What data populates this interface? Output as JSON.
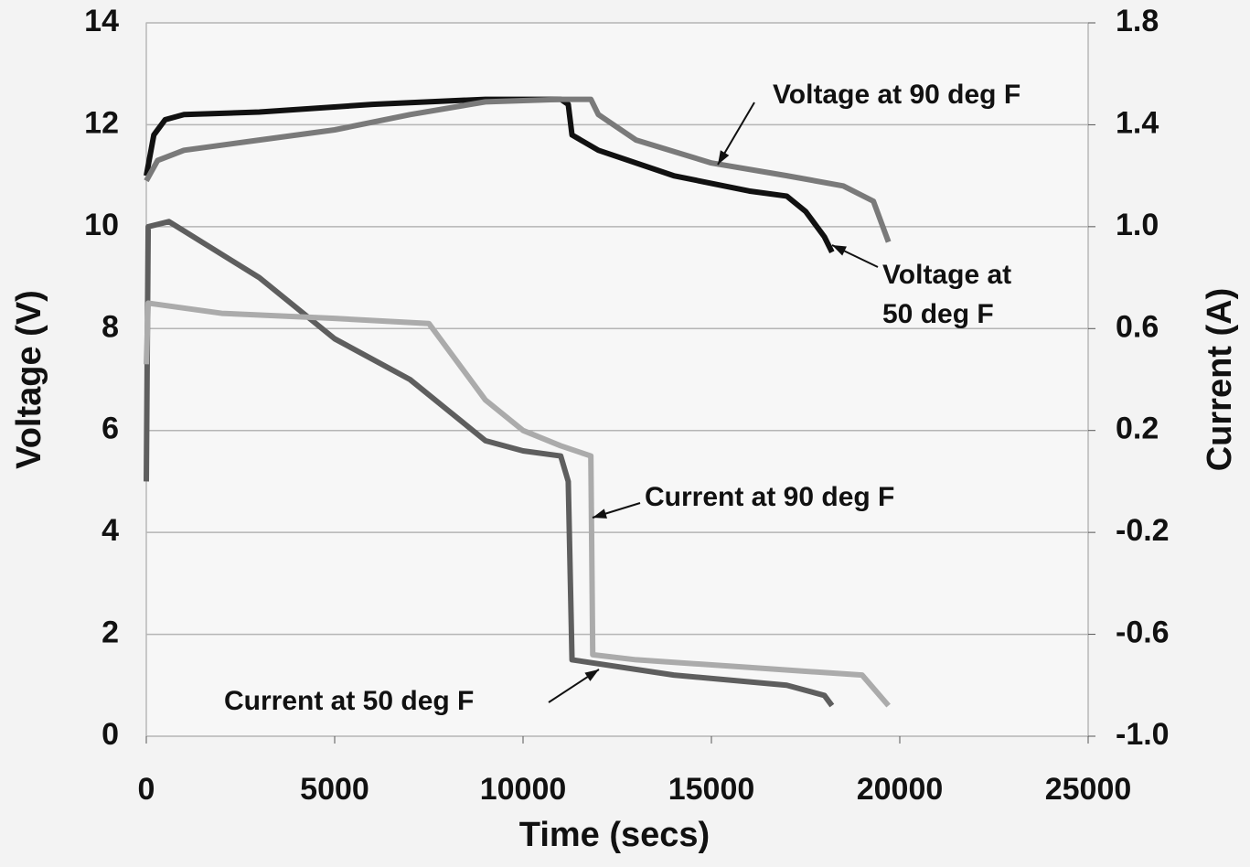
{
  "chart_data": {
    "type": "line",
    "xlabel": "Time (secs)",
    "ylabel": "Voltage (V)",
    "y2label": "Current (A)",
    "xlim": [
      0,
      25000
    ],
    "xticks": [
      0,
      5000,
      10000,
      15000,
      20000,
      25000
    ],
    "ylim": [
      0,
      14
    ],
    "yticks": [
      0,
      2,
      4,
      6,
      8,
      10,
      12,
      14
    ],
    "y2lim": [
      -1,
      1.8
    ],
    "y2ticks": [
      {
        "value": -1,
        "label": "-1.0"
      },
      -0.6,
      -0.2,
      0.2,
      0.6,
      {
        "value": 1,
        "label": "1.0"
      },
      1.4,
      1.8
    ],
    "grid": true,
    "series": [
      {
        "name": "Voltage at 50 deg F",
        "color": "#111111",
        "x": [
          0,
          200,
          500,
          1000,
          3000,
          6000,
          9000,
          11000,
          11200,
          11300,
          12000,
          14000,
          16000,
          17000,
          17500,
          18000,
          18200
        ],
        "values": [
          11,
          11.8,
          12.1,
          12.2,
          12.25,
          12.4,
          12.5,
          12.5,
          12.4,
          11.8,
          11.5,
          11,
          10.7,
          10.6,
          10.3,
          9.8,
          9.5
        ]
      },
      {
        "name": "Voltage at 90 deg F",
        "color": "#7a7a7a",
        "x": [
          0,
          300,
          1000,
          3000,
          5000,
          7000,
          9000,
          11000,
          11800,
          12000,
          13000,
          15000,
          17000,
          18500,
          19300,
          19700
        ],
        "values": [
          10.9,
          11.3,
          11.5,
          11.7,
          11.9,
          12.2,
          12.45,
          12.5,
          12.5,
          12.2,
          11.7,
          11.25,
          11,
          10.8,
          10.5,
          9.7
        ]
      },
      {
        "name": "Current at 50 deg F",
        "color": "#5e5e5e",
        "axis": "y2",
        "x": [
          0,
          50,
          600,
          3000,
          5000,
          7000,
          8000,
          9000,
          10000,
          11000,
          11200,
          11300,
          14000,
          17000,
          18000,
          18200
        ],
        "values": [
          0,
          1,
          1.02,
          0.8,
          0.56,
          0.4,
          0.28,
          0.16,
          0.12,
          0.1,
          0,
          -0.7,
          -0.76,
          -0.8,
          -0.84,
          -0.88
        ]
      },
      {
        "name": "Current at 90 deg F",
        "color": "#ababab",
        "axis": "y2",
        "x": [
          0,
          50,
          2000,
          5000,
          7500,
          8000,
          9000,
          10000,
          11000,
          11800,
          11850,
          13000,
          16000,
          19000,
          19700
        ],
        "values": [
          0.46,
          0.7,
          0.66,
          0.64,
          0.62,
          0.52,
          0.32,
          0.2,
          0.14,
          0.1,
          -0.68,
          -0.7,
          -0.73,
          -0.76,
          -0.88
        ]
      }
    ],
    "annotations": [
      "Voltage at 90 deg F",
      [
        "Voltage at",
        "50 deg F"
      ],
      "Current at 90 deg F",
      "Current at 50 deg F"
    ]
  }
}
